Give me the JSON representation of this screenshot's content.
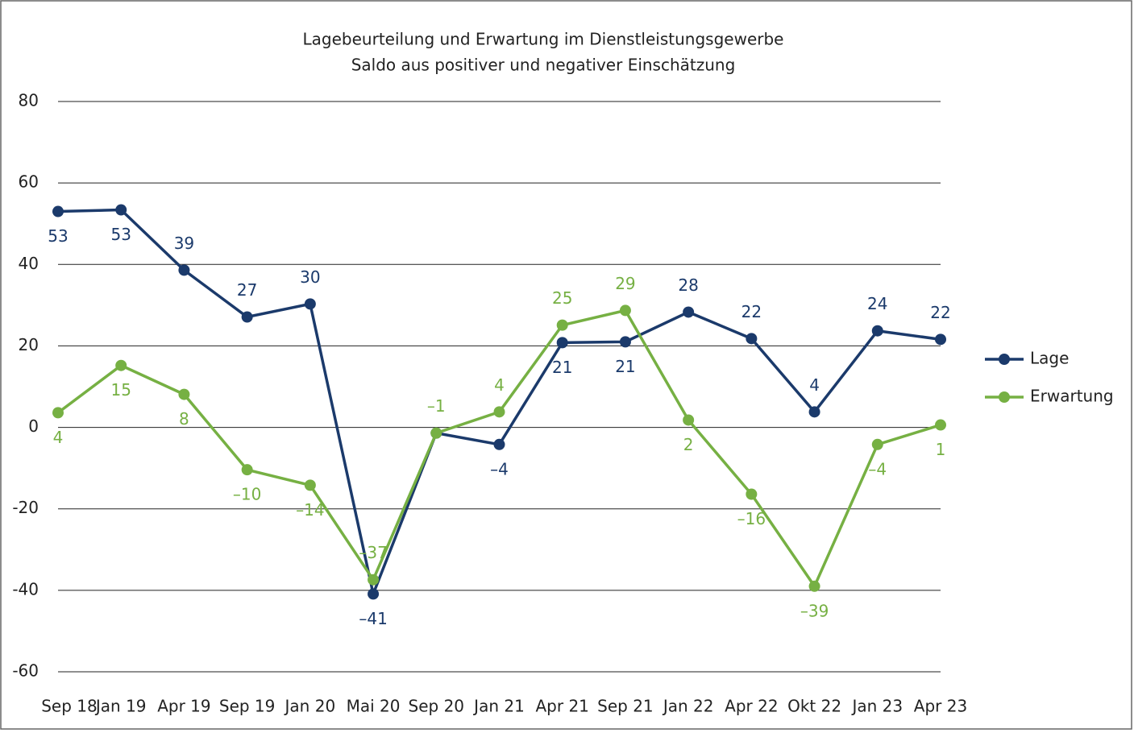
{
  "chart_data": {
    "type": "line",
    "title": "Lagebeurteilung und Erwartung im Dienstleistungsgewerbe",
    "subtitle": "Saldo aus positiver und negativer Einschätzung",
    "categories": [
      "Sep 18",
      "Jan 19",
      "Apr 19",
      "Sep 19",
      "Jan 20",
      "Mai 20",
      "Sep 20",
      "Jan 21",
      "Apr 21",
      "Sep 21",
      "Jan 22",
      "Apr 22",
      "Okt 22",
      "Jan 23",
      "Apr 23"
    ],
    "series": [
      {
        "name": "Lage",
        "color": "#1b3a6b",
        "values": [
          53.0,
          53.4,
          38.6,
          27.1,
          30.3,
          -40.9,
          -1.4,
          -4.2,
          20.8,
          21.0,
          28.3,
          21.8,
          3.8,
          23.7,
          21.6
        ],
        "value_labels": [
          "53",
          "53",
          "39",
          "27",
          "30",
          "–41",
          null,
          "–4",
          "21",
          "21",
          "28",
          "22",
          "4",
          "24",
          "22"
        ]
      },
      {
        "name": "Erwartung",
        "color": "#76b043",
        "values": [
          3.6,
          15.2,
          8.1,
          -10.4,
          -14.2,
          -37.4,
          -1.4,
          3.8,
          25.1,
          28.7,
          1.8,
          -16.4,
          -39.0,
          -4.2,
          0.6
        ],
        "value_labels": [
          "4",
          "15",
          "8",
          "–10",
          "–14",
          "–37",
          "–1",
          "4",
          "25",
          "29",
          "2",
          "–16",
          "–39",
          "–4",
          "1"
        ]
      }
    ],
    "ylim": [
      -60,
      80
    ],
    "yticks": [
      -60,
      -40,
      -20,
      0,
      20,
      40,
      60,
      80
    ],
    "grid": true,
    "legend": "right"
  }
}
